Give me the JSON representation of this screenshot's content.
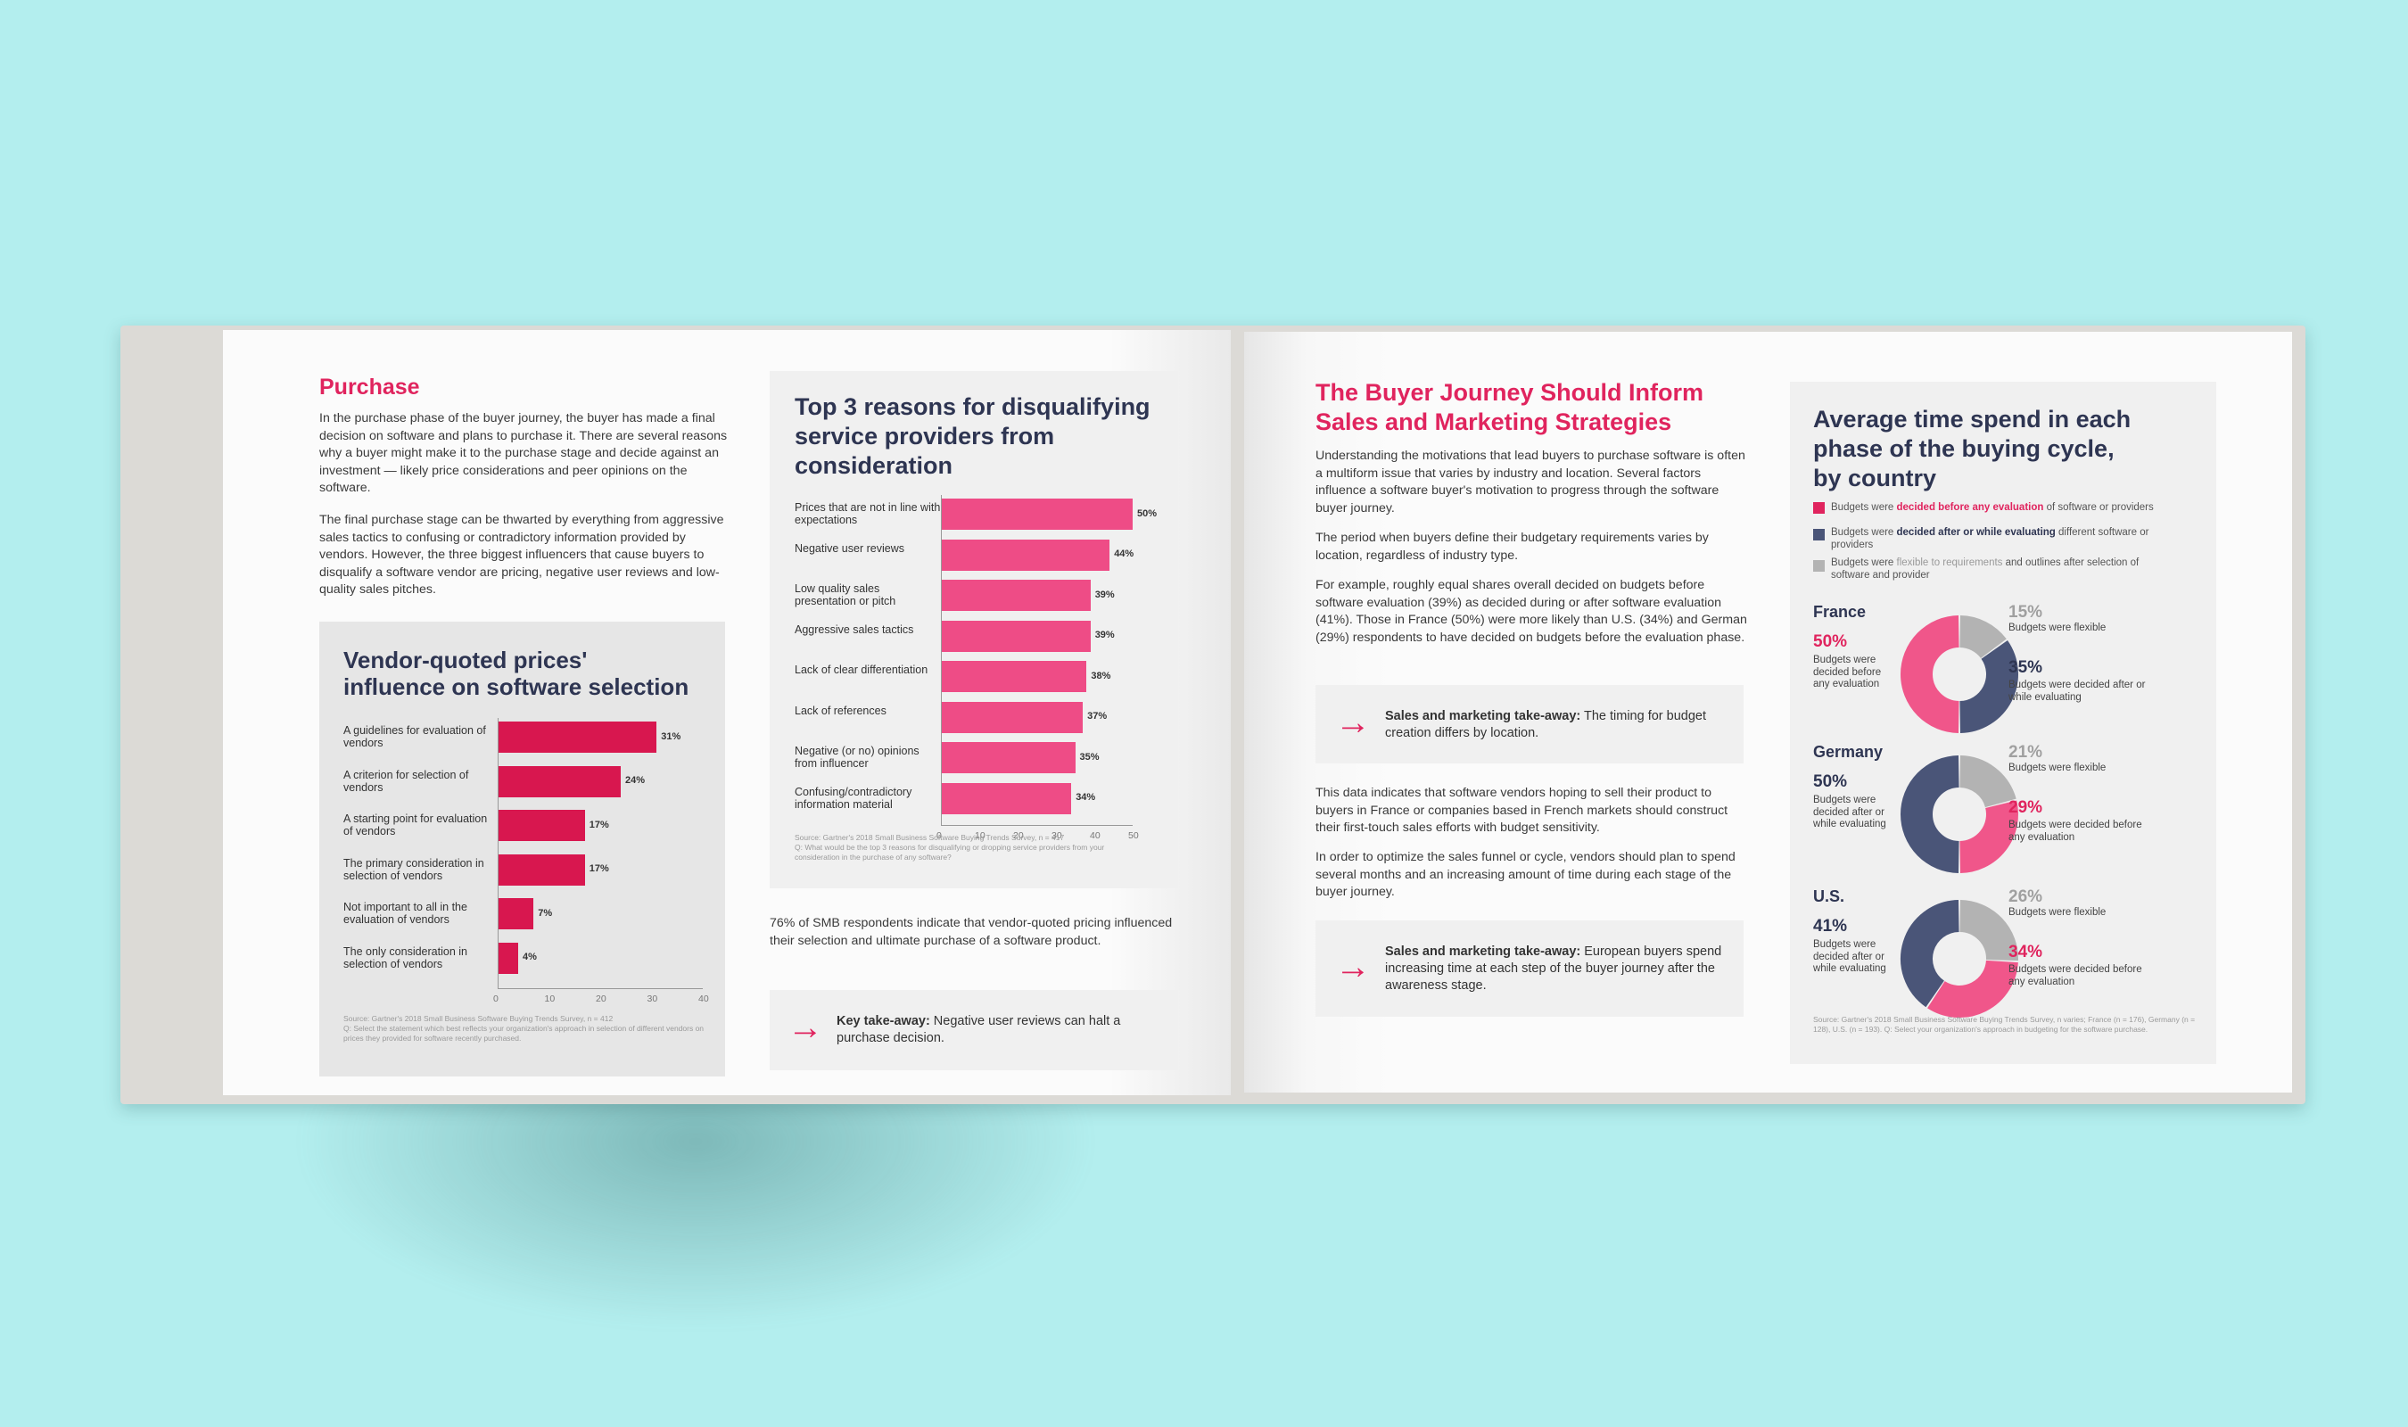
{
  "colors": {
    "background": "#b3eeee",
    "pink": "#e0245e",
    "pink_light": "#f0568a",
    "navy": "#2e3552",
    "slate": "#4a5578",
    "gray": "#b3b3b3"
  },
  "left": {
    "purchase_title": "Purchase",
    "purchase_p1": "In the purchase phase of the buyer journey, the buyer has made a final decision on software and plans to purchase it. There are several reasons why a buyer might make it to the purchase stage and decide against an investment — likely price considerations and peer opinions on the software.",
    "purchase_p2": "The final purchase stage can be thwarted by everything from aggressive sales tactics to confusing or contradictory information provided by vendors. However, the three biggest influencers that cause buyers to disqualify a software vendor are pricing, negative user reviews and low-quality sales pitches.",
    "vendor_chart": {
      "title_line1": "Vendor-quoted prices'",
      "title_line2": "influence on software selection",
      "source": "Source: Gartner's 2018 Small Business Software Buying Trends Survey, n = 412\nQ: Select the statement which best reflects your organization's approach in selection of different vendors on prices they provided for software recently purchased."
    },
    "reasons_chart": {
      "title_line1": "Top 3 reasons for disqualifying",
      "title_line2": "service providers from",
      "title_line3": "consideration",
      "source": "Source: Gartner's 2018 Small Business Software Buying Trends Survey, n = 417\nQ: What would be the top 3 reasons for disqualifying or dropping service providers from your consideration in the purchase of any software?"
    },
    "note": "76% of SMB respondents indicate that vendor-quoted pricing influenced their selection and ultimate purchase of a software product.",
    "takeaway_bold": "Key take-away:",
    "takeaway_text": " Negative user reviews can halt a purchase decision."
  },
  "right": {
    "title_line1": "The Buyer Journey Should Inform",
    "title_line2": "Sales and Marketing Strategies",
    "p1": "Understanding the motivations that lead buyers to purchase software is often a multiform issue that varies by industry and location. Several factors influence a software buyer's motivation to progress through the software buyer journey.",
    "p2": "The period when buyers define their budgetary requirements varies by location, regardless of industry type.",
    "p3": "For example, roughly equal shares overall decided on budgets before software evaluation (39%) as decided during or after software evaluation (41%). Those in France (50%) were more likely than U.S. (34%) and German (29%) respondents to have decided on budgets before the evaluation phase.",
    "takeaway1_bold": "Sales and marketing take-away:",
    "takeaway1_text": " The timing for budget creation differs by location.",
    "p4": "This data indicates that software vendors hoping to sell their product to buyers in France or companies based in French markets should construct their first-touch sales efforts with budget sensitivity.",
    "p5": "In order to optimize the sales funnel or cycle, vendors should plan to spend several months and an increasing amount of time during each stage of the buyer journey.",
    "takeaway2_bold": "Sales and marketing take-away:",
    "takeaway2_text": " European buyers spend increasing time at each step of the buyer journey after the awareness stage.",
    "donut_card": {
      "title_line1": "Average time spend in each",
      "title_line2": "phase of the buying cycle,",
      "title_line3": "by country",
      "legend1_pre": "Budgets were ",
      "legend1_em": "decided before any evaluation",
      "legend1_post": " of software or providers",
      "legend2_pre": "Budgets were ",
      "legend2_em": "decided after or while evaluating",
      "legend2_post": " different software or providers",
      "legend3_pre": "Budgets were ",
      "legend3_em": "flexible to requirements",
      "legend3_post": " and outlines after selection of software and provider",
      "source": "Source: Gartner's 2018 Small Business Software Buying Trends Survey, n varies; France (n = 176), Germany (n = 128), U.S. (n = 193). Q: Select your organization's approach in budgeting for the software purchase."
    }
  },
  "chart_data": [
    {
      "type": "bar",
      "title": "Vendor-quoted prices' influence on software selection",
      "categories": [
        "A guidelines for evaluation of vendors",
        "A criterion for selection of vendors",
        "A starting point for evaluation of vendors",
        "The primary consideration in selection of vendors",
        "Not important to all in the evaluation of vendors",
        "The only consideration in selection of vendors"
      ],
      "values": [
        31,
        24,
        17,
        17,
        7,
        4
      ],
      "value_labels": [
        "31%",
        "24%",
        "17%",
        "17%",
        "7%",
        "4%"
      ],
      "xlim": [
        0,
        40
      ],
      "ticks": [
        "0",
        "10",
        "20",
        "30",
        "40"
      ]
    },
    {
      "type": "bar",
      "title": "Top 3 reasons for disqualifying service providers from consideration",
      "categories": [
        "Prices that are not in line with expectations",
        "Negative user reviews",
        "Low quality sales presentation or pitch",
        "Aggressive sales tactics",
        "Lack of clear differentiation",
        "Lack of references",
        "Negative (or no) opinions from influencer",
        "Confusing/contradictory information material"
      ],
      "values": [
        50,
        44,
        39,
        39,
        38,
        37,
        35,
        34
      ],
      "value_labels": [
        "50%",
        "44%",
        "39%",
        "39%",
        "38%",
        "37%",
        "35%",
        "34%"
      ],
      "xlim": [
        0,
        50
      ],
      "ticks": [
        "0",
        "10",
        "20",
        "30",
        "40",
        "50"
      ]
    },
    {
      "type": "pie",
      "title": "Average time spend in each phase of the buying cycle, by country",
      "countries": [
        {
          "name": "France",
          "before": 50,
          "after": 35,
          "flexible": 15,
          "before_label": "50%",
          "after_label": "35%",
          "flex_label": "15%",
          "before_desc": "Budgets were decided before any evaluation",
          "after_desc": "Budgets were decided after or while evaluating",
          "flex_desc": "Budgets were flexible"
        },
        {
          "name": "Germany",
          "before": 29,
          "after": 50,
          "flexible": 21,
          "before_label": "29%",
          "after_label": "50%",
          "flex_label": "21%",
          "before_desc": "Budgets were decided before any evaluation",
          "after_desc": "Budgets were decided after or while evaluating",
          "flex_desc": "Budgets were flexible"
        },
        {
          "name": "U.S.",
          "before": 34,
          "after": 41,
          "flexible": 26,
          "before_label": "34%",
          "after_label": "41%",
          "flex_label": "26%",
          "before_desc": "Budgets were decided before any evaluation",
          "after_desc": "Budgets were decided after or while evaluating",
          "flex_desc": "Budgets were flexible"
        }
      ]
    }
  ]
}
